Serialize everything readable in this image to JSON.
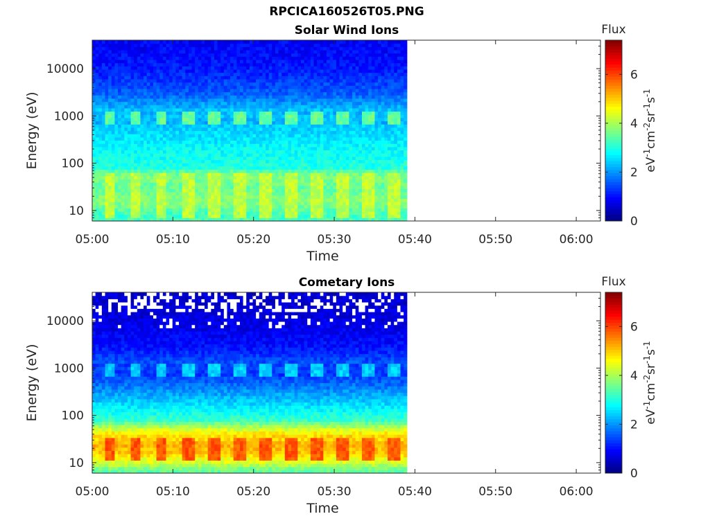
{
  "figure": {
    "title": "RPCICA160526T05.PNG"
  },
  "chart_data": [
    {
      "type": "heatmap",
      "title": "Solar Wind Ions",
      "xlabel": "Time",
      "ylabel": "Energy (eV)",
      "y_scale": "log",
      "ylim": [
        6,
        40000
      ],
      "xlim": [
        "05:00",
        "06:03"
      ],
      "x_ticks": [
        "05:00",
        "05:10",
        "05:20",
        "05:30",
        "05:40",
        "05:50",
        "06:00"
      ],
      "y_ticks": [
        "10",
        "100",
        "1000",
        "10000"
      ],
      "data_extent_time": [
        "05:00",
        "05:39"
      ],
      "colorbar": {
        "title": "Flux",
        "label": "eV-1cm-2sr-1s-1",
        "range": [
          0,
          7.4
        ],
        "ticks": [
          "0",
          "2",
          "4",
          "6"
        ],
        "colormap": "jet"
      },
      "features": [
        {
          "energy_range_eV": [
            700,
            1300
          ],
          "flux_level": 3.6,
          "pattern": "pulsed",
          "period_min": 3.2
        },
        {
          "energy_range_eV": [
            7,
            60
          ],
          "flux_level": 4.2,
          "pattern": "pulsed",
          "period_min": 3.2
        }
      ],
      "profile": {
        "energy_eV": [
          7,
          15,
          30,
          55,
          80,
          200,
          600,
          1000,
          3000,
          10000,
          30000
        ],
        "flux": [
          3.3,
          4.0,
          3.7,
          4.0,
          3.0,
          2.8,
          2.4,
          2.6,
          1.6,
          1.1,
          0.9
        ]
      }
    },
    {
      "type": "heatmap",
      "title": "Cometary Ions",
      "xlabel": "Time",
      "ylabel": "Energy (eV)",
      "y_scale": "log",
      "ylim": [
        6,
        40000
      ],
      "xlim": [
        "05:00",
        "06:03"
      ],
      "x_ticks": [
        "05:00",
        "05:10",
        "05:20",
        "05:30",
        "05:40",
        "05:50",
        "06:00"
      ],
      "y_ticks": [
        "10",
        "100",
        "1000",
        "10000"
      ],
      "data_extent_time": [
        "05:00",
        "05:39"
      ],
      "colorbar": {
        "title": "Flux",
        "label": "eV-1cm-2sr-1s-1",
        "range": [
          0,
          7.4
        ],
        "ticks": [
          "0",
          "2",
          "4",
          "6"
        ],
        "colormap": "jet"
      },
      "features": [
        {
          "energy_range_eV": [
            12,
            35
          ],
          "flux_level": 5.9,
          "pattern": "pulsed",
          "period_min": 3.2
        },
        {
          "energy_range_eV": [
            40,
            60
          ],
          "flux_level": 4.6,
          "pattern": "continuous"
        },
        {
          "energy_range_eV": [
            700,
            1300
          ],
          "flux_level": 2.5,
          "pattern": "pulsed",
          "period_min": 3.2
        }
      ],
      "profile": {
        "energy_eV": [
          7,
          15,
          25,
          45,
          80,
          200,
          600,
          1000,
          3000,
          10000,
          30000
        ],
        "flux": [
          3.5,
          5.2,
          5.5,
          4.6,
          3.2,
          2.4,
          1.5,
          1.7,
          1.0,
          0.7,
          0.6
        ]
      }
    }
  ]
}
